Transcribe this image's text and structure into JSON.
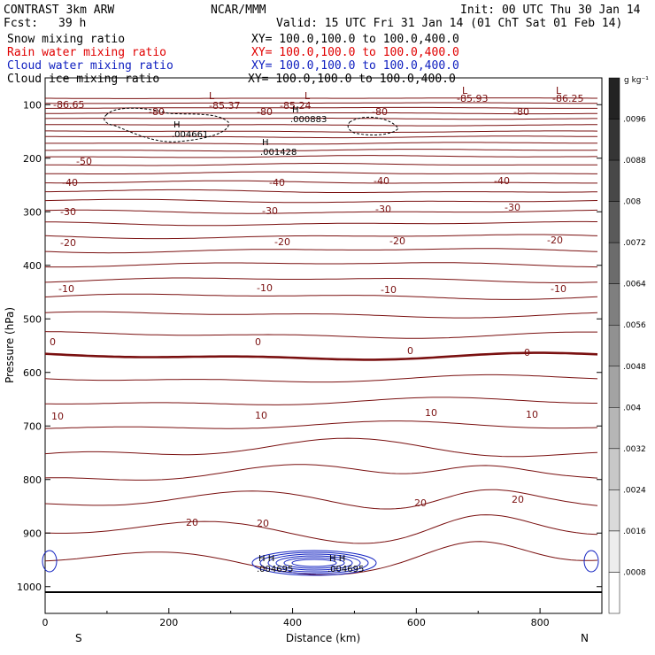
{
  "header": {
    "title": "CONTRAST  3km ARW",
    "center": "NCAR/MMM",
    "init": "Init: 00 UTC Thu 30 Jan 14",
    "fcst_label": "Fcst:",
    "fcst_value": "39 h",
    "valid": "Valid: 15 UTC Fri 31 Jan 14 (01 ChT Sat 01 Feb 14)"
  },
  "fields": [
    {
      "label": "Snow mixing ratio",
      "xy": "XY= 100.0,100.0 to 100.0,400.0",
      "color": "#000000"
    },
    {
      "label": "Rain water mixing ratio",
      "xy": "XY= 100.0,100.0 to 100.0,400.0",
      "color": "#e00000"
    },
    {
      "label": "Cloud water mixing ratio",
      "xy": "XY= 100.0,100.0 to 100.0,400.0",
      "color": "#1020c0"
    },
    {
      "label": "Cloud ice mixing ratio",
      "xy": "XY= 100.0,100.0 to 100.0,400.0",
      "color": "#000000"
    }
  ],
  "chart_data": {
    "type": "contour",
    "xlabel": "Distance (km)",
    "ylabel": "Pressure (hPa)",
    "xlim": [
      0,
      900
    ],
    "ylim": [
      1050,
      50
    ],
    "x_ticks": [
      "0",
      "200",
      "400",
      "600",
      "800"
    ],
    "y_ticks": [
      "100",
      "200",
      "300",
      "400",
      "500",
      "600",
      "700",
      "800",
      "900",
      "1000"
    ],
    "x_end_labels": {
      "left": "S",
      "right": "N"
    },
    "colorbar": {
      "unit": "g kg⁻¹",
      "labels": [
        ".0096",
        ".0088",
        ".008",
        ".0072",
        ".0064",
        ".0056",
        ".0048",
        ".004",
        ".0032",
        ".0024",
        ".0016",
        ".0008"
      ]
    },
    "temperature_labels": [
      "-86.65",
      "-85.37",
      "-85.24",
      "-85.93",
      "-86.25",
      "-80",
      "-80",
      "-80",
      "-80",
      "-50",
      "-40",
      "-40",
      "-40",
      "-40",
      "-30",
      "-30",
      "-30",
      "-30",
      "-20",
      "-20",
      "-20",
      "-20",
      "-10",
      "-10",
      "-10",
      "-10",
      "0",
      "0",
      "0",
      "0",
      "10",
      "10",
      "10",
      "10",
      "20",
      "20",
      "20",
      "20"
    ],
    "extrema": {
      "L": "L",
      "H": "H",
      "upper_high_values": [
        ".004661",
        ".000883",
        ".001428"
      ],
      "low_level_values": [
        ".004695",
        ".004695"
      ]
    },
    "isotherm_pressures": [
      88,
      97,
      106,
      116,
      126,
      138,
      150,
      160,
      172,
      185,
      197,
      212,
      228,
      245,
      262,
      280,
      300,
      322,
      346,
      372,
      398,
      427,
      458,
      492,
      530,
      570,
      612,
      655,
      700,
      745,
      795,
      845,
      900,
      955
    ]
  }
}
